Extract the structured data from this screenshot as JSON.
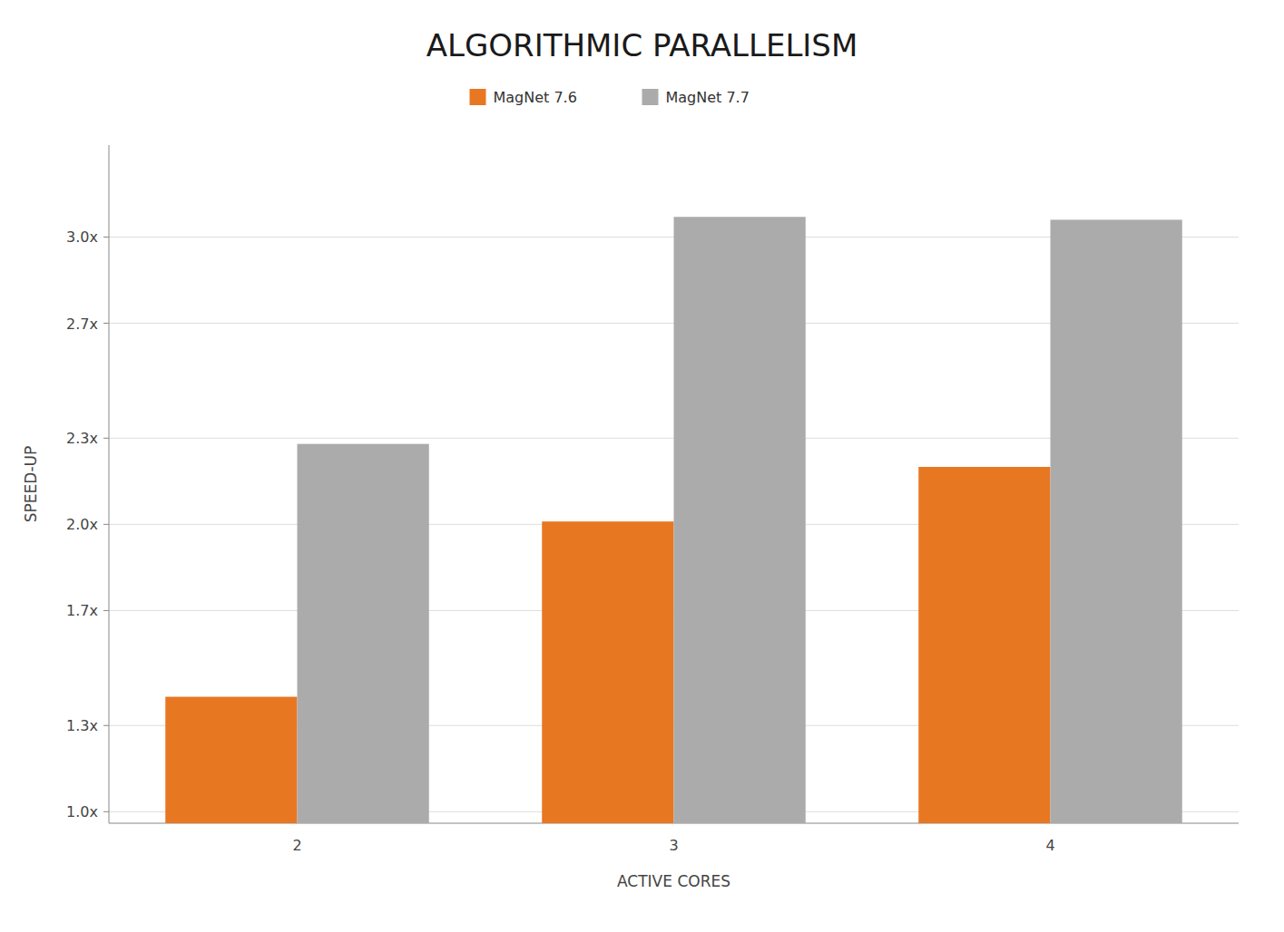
{
  "chart_data": {
    "type": "bar",
    "title": "ALGORITHMIC PARALLELISM",
    "x_label": "ACTIVE CORES",
    "y_label": "SPEED-UP",
    "categories": [
      "2",
      "3",
      "4"
    ],
    "series": [
      {
        "name": "MagNet 7.6",
        "color": "#E87722",
        "values": [
          1.4,
          2.01,
          2.2
        ]
      },
      {
        "name": "MagNet 7.7",
        "color": "#ABABAB",
        "values": [
          2.28,
          3.07,
          3.06
        ]
      }
    ],
    "ylim": [
      0.96,
      3.32
    ],
    "yticks": [
      {
        "value": 1.0,
        "label": "1.0x"
      },
      {
        "value": 1.3,
        "label": "1.3x"
      },
      {
        "value": 1.7,
        "label": "1.7x"
      },
      {
        "value": 2.0,
        "label": "2.0x"
      },
      {
        "value": 2.3,
        "label": "2.3x"
      },
      {
        "value": 2.7,
        "label": "2.7x"
      },
      {
        "value": 3.0,
        "label": "3.0x"
      }
    ],
    "grid": true,
    "legend": "top"
  }
}
